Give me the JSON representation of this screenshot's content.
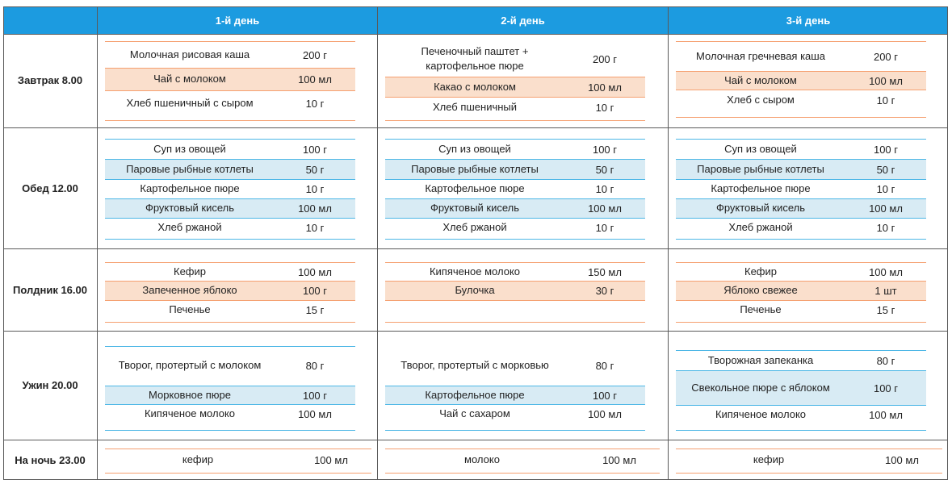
{
  "header": {
    "days": [
      "1-й день",
      "2-й день",
      "3-й день"
    ]
  },
  "meals": [
    {
      "label": "Завтрак 8.00"
    },
    {
      "label": "Обед 12.00"
    },
    {
      "label": "Полдник 16.00"
    },
    {
      "label": "Ужин 20.00"
    },
    {
      "label": "На ночь 23.00"
    }
  ],
  "colors": {
    "header_bg": "#1c9be0",
    "header_text": "#ffffff",
    "highlight_orange": "#fadfcc",
    "highlight_blue": "#d8ebf4",
    "rule_orange": "#f5a070",
    "rule_blue": "#4db7e6"
  },
  "menu": {
    "day1": {
      "breakfast": [
        {
          "name": "Молочная рисовая каша",
          "qty": "200 г"
        },
        {
          "name": "Чай с молоком",
          "qty": "100 мл"
        },
        {
          "name": "Хлеб пшеничный с сыром",
          "qty": "10 г"
        }
      ],
      "lunch": [
        {
          "name": "Суп из овощей",
          "qty": "100 г"
        },
        {
          "name": "Паровые рыбные котлеты",
          "qty": "50 г"
        },
        {
          "name": "Картофельное пюре",
          "qty": "10 г"
        },
        {
          "name": "Фруктовый кисель",
          "qty": "100 мл"
        },
        {
          "name": "Хлеб ржаной",
          "qty": "10 г"
        }
      ],
      "snack": [
        {
          "name": "Кефир",
          "qty": "100 мл"
        },
        {
          "name": "Запеченное яблоко",
          "qty": "100 г"
        },
        {
          "name": "Печенье",
          "qty": "15 г"
        }
      ],
      "dinner": [
        {
          "name": "Творог, протертый с молоком",
          "qty": "80 г"
        },
        {
          "name": "Морковное пюре",
          "qty": "100 г"
        },
        {
          "name": "Кипяченое молоко",
          "qty": "100 мл"
        }
      ],
      "night": [
        {
          "name": "кефир",
          "qty": "100 мл"
        }
      ]
    },
    "day2": {
      "breakfast": [
        {
          "name": "Печеночный паштет + картофельное пюре",
          "qty": "200 г"
        },
        {
          "name": "Какао с молоком",
          "qty": "100 мл"
        },
        {
          "name": "Хлеб пшеничный",
          "qty": "10 г"
        }
      ],
      "lunch": [
        {
          "name": "Суп из овощей",
          "qty": "100 г"
        },
        {
          "name": "Паровые рыбные котлеты",
          "qty": "50 г"
        },
        {
          "name": "Картофельное пюре",
          "qty": "10 г"
        },
        {
          "name": "Фруктовый кисель",
          "qty": "100 мл"
        },
        {
          "name": "Хлеб ржаной",
          "qty": "10 г"
        }
      ],
      "snack": [
        {
          "name": "Кипяченое молоко",
          "qty": "150 мл"
        },
        {
          "name": "Булочка",
          "qty": "30 г"
        }
      ],
      "dinner": [
        {
          "name": "Творог, протертый с морковью",
          "qty": "80 г"
        },
        {
          "name": "Картофельное пюре",
          "qty": "100 г"
        },
        {
          "name": "Чай с сахаром",
          "qty": "100 мл"
        }
      ],
      "night": [
        {
          "name": "молоко",
          "qty": "100 мл"
        }
      ]
    },
    "day3": {
      "breakfast": [
        {
          "name": "Молочная гречневая каша",
          "qty": "200 г"
        },
        {
          "name": "Чай с молоком",
          "qty": "100 мл"
        },
        {
          "name": "Хлеб с сыром",
          "qty": "10 г"
        }
      ],
      "lunch": [
        {
          "name": "Суп из овощей",
          "qty": "100 г"
        },
        {
          "name": "Паровые рыбные котлеты",
          "qty": "50 г"
        },
        {
          "name": "Картофельное пюре",
          "qty": "10 г"
        },
        {
          "name": "Фруктовый кисель",
          "qty": "100 мл"
        },
        {
          "name": "Хлеб ржаной",
          "qty": "10 г"
        }
      ],
      "snack": [
        {
          "name": "Кефир",
          "qty": "100 мл"
        },
        {
          "name": "Яблоко свежее",
          "qty": "1 шт"
        },
        {
          "name": "Печенье",
          "qty": "15 г"
        }
      ],
      "dinner": [
        {
          "name": "Творожная запеканка",
          "qty": "80 г"
        },
        {
          "name": "Свекольное пюре с яблоком",
          "qty": "100 г"
        },
        {
          "name": "Кипяченое молоко",
          "qty": "100 мл"
        }
      ],
      "night": [
        {
          "name": "кефир",
          "qty": "100 мл"
        }
      ]
    }
  }
}
